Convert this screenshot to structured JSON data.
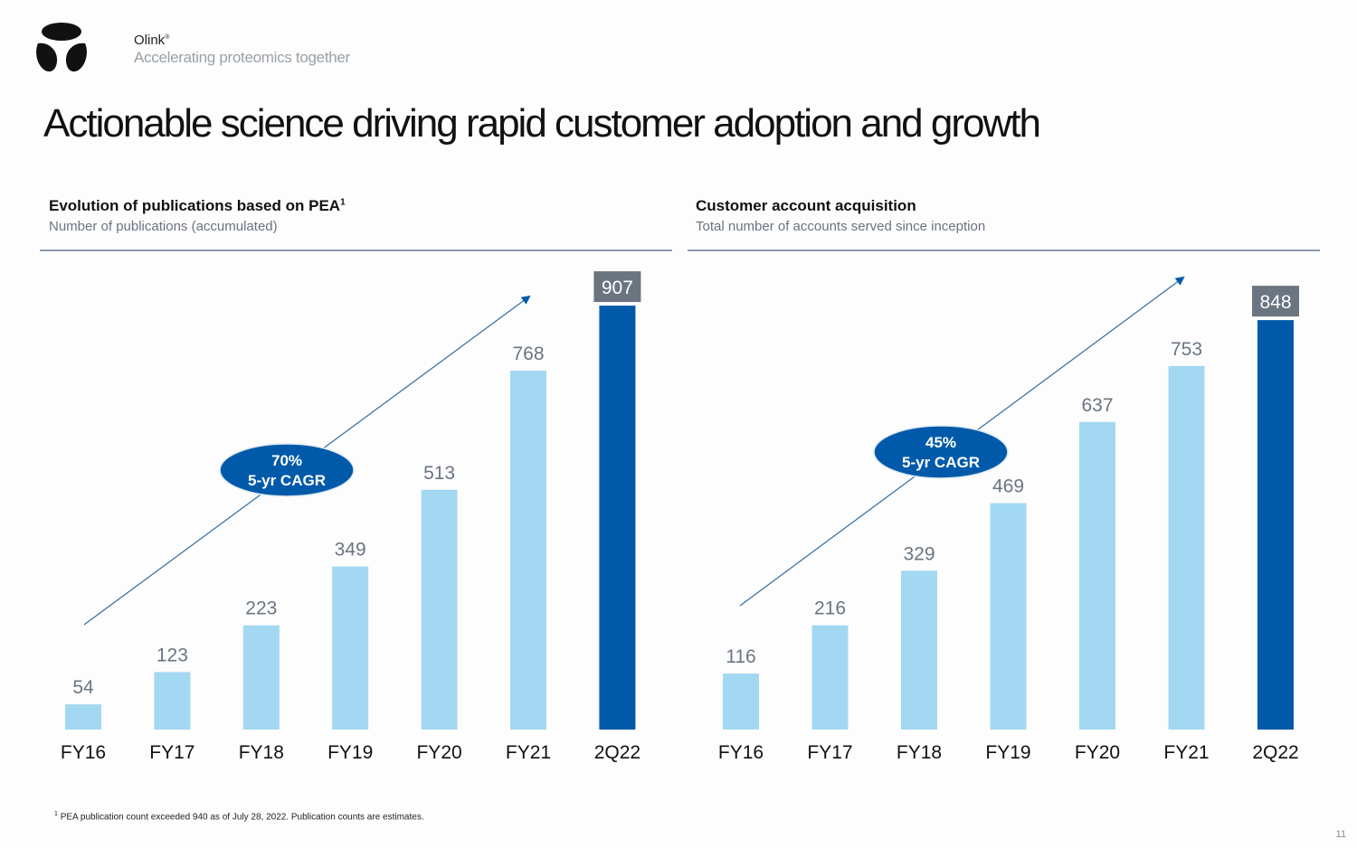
{
  "brand": {
    "name": "Olink",
    "mark": "®",
    "tagline": "Accelerating proteomics together"
  },
  "title": "Actionable science driving rapid customer adoption and growth",
  "colors": {
    "bar": "#a3d8f2",
    "highlight_bar": "#005aa9",
    "label_box": "#6b7580",
    "arrow": "#2e6da4",
    "ellipse": "#005aa9",
    "value_text": "#6b7580"
  },
  "chart_data": [
    {
      "type": "bar",
      "title": "Evolution of publications based on PEA",
      "title_superscript": "1",
      "subtitle": "Number of publications (accumulated)",
      "xlabel": "",
      "ylabel": "",
      "categories": [
        "FY16",
        "FY17",
        "FY18",
        "FY19",
        "FY20",
        "FY21",
        "2Q22"
      ],
      "values": [
        54,
        123,
        223,
        349,
        513,
        768,
        907
      ],
      "highlight_index": 6,
      "ylim": [
        0,
        1000
      ],
      "grid": false,
      "annotation": {
        "line1": "70%",
        "line2": "5-yr CAGR"
      }
    },
    {
      "type": "bar",
      "title": "Customer account acquisition",
      "subtitle": "Total number of accounts served since inception",
      "xlabel": "",
      "ylabel": "",
      "categories": [
        "FY16",
        "FY17",
        "FY18",
        "FY19",
        "FY20",
        "FY21",
        "2Q22"
      ],
      "values": [
        116,
        216,
        329,
        469,
        637,
        753,
        848
      ],
      "highlight_index": 6,
      "ylim": [
        0,
        968
      ],
      "grid": false,
      "annotation": {
        "line1": "45%",
        "line2": "5-yr CAGR"
      }
    }
  ],
  "footnote": {
    "mark": "1",
    "text": "PEA publication count exceeded 940 as of July 28, 2022. Publication counts are estimates."
  },
  "page_number": "11"
}
